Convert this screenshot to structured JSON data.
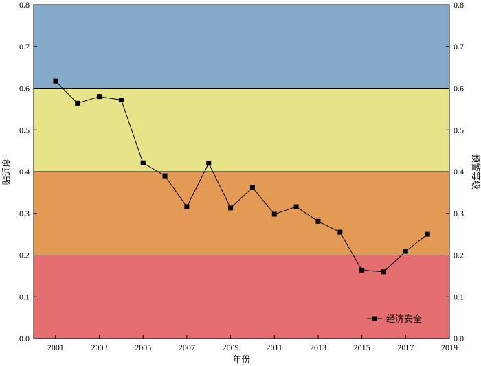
{
  "chart_data": {
    "type": "line",
    "title": "",
    "xlabel": "年份",
    "ylabel_left": "贴近度",
    "ylabel_right": "预警等级",
    "xlim": [
      2000,
      2019
    ],
    "ylim": [
      0.0,
      0.8
    ],
    "x_ticks": [
      "2001",
      "2003",
      "2005",
      "2007",
      "2009",
      "2011",
      "2013",
      "2015",
      "2017",
      "2019"
    ],
    "y_ticks": [
      "0.0",
      "0.1",
      "0.2",
      "0.3",
      "0.4",
      "0.5",
      "0.6",
      "0.7",
      "0.8"
    ],
    "bands": [
      {
        "from": 0.0,
        "to": 0.2,
        "color": "#e46e70"
      },
      {
        "from": 0.2,
        "to": 0.4,
        "color": "#e29a55"
      },
      {
        "from": 0.4,
        "to": 0.6,
        "color": "#e6e388"
      },
      {
        "from": 0.6,
        "to": 0.8,
        "color": "#86aac9"
      }
    ],
    "series": [
      {
        "name": "经济安全",
        "color": "#000000",
        "marker": "square",
        "x": [
          2001,
          2002,
          2003,
          2004,
          2005,
          2006,
          2007,
          2008,
          2009,
          2010,
          2011,
          2012,
          2013,
          2014,
          2015,
          2016,
          2017,
          2018
        ],
        "y": [
          0.617,
          0.564,
          0.58,
          0.572,
          0.421,
          0.39,
          0.316,
          0.42,
          0.313,
          0.362,
          0.298,
          0.316,
          0.281,
          0.255,
          0.164,
          0.16,
          0.209,
          0.25
        ]
      }
    ],
    "legend_position": "bottom-right",
    "grid": false
  }
}
